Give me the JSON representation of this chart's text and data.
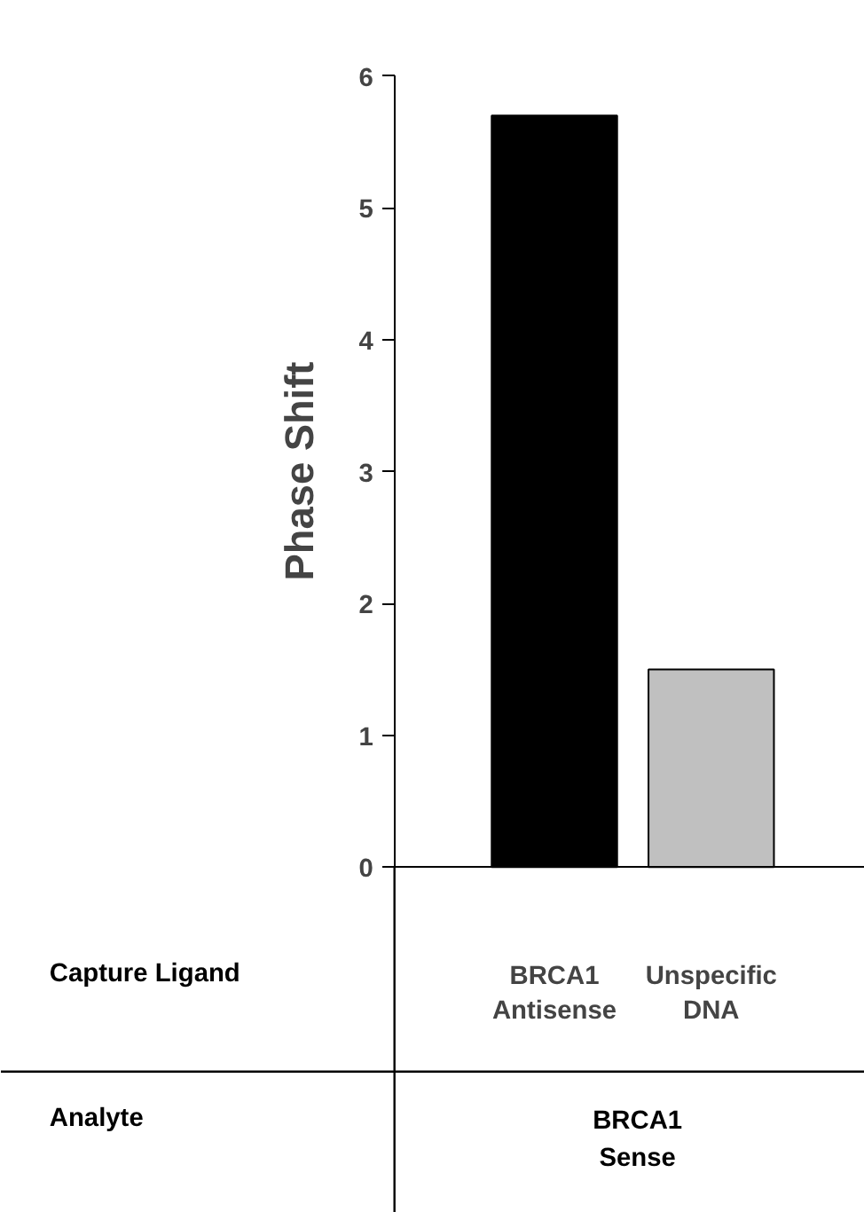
{
  "chart_data": {
    "type": "bar",
    "ylabel": "Phase Shift",
    "categories": [
      "BRCA1\nAntisense",
      "Unspecific\nDNA"
    ],
    "colors": [
      "#000000",
      "#c0c0c0"
    ],
    "values": [
      5.7,
      1.5
    ],
    "ylim": [
      0,
      6
    ],
    "yticks": [
      0,
      1,
      2,
      3,
      4,
      5,
      6
    ],
    "grid": false,
    "annotations": [
      "Capture Ligand",
      "Analyte",
      "BRCA1\nSense"
    ]
  }
}
